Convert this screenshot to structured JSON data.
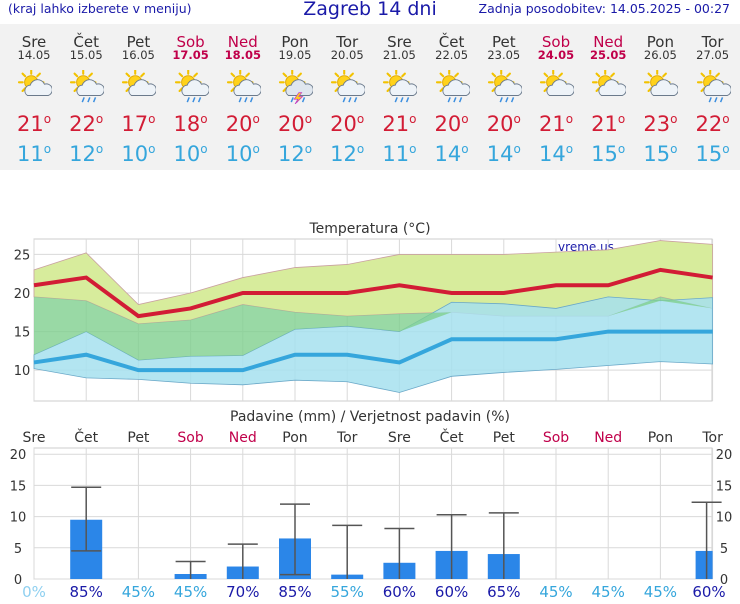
{
  "header": {
    "menu_hint": "(kraj lahko izberete v meniju)",
    "title": "Zagreb 14 dni",
    "updated": "Zadnja posodobitev: 14.05.2025 - 00:27"
  },
  "colors": {
    "accent": "#1a1aa8",
    "weekend": "#c0004a",
    "max_temp": "#d21c35",
    "min_temp": "#35a6dc",
    "precip_bar": "#2b86e8",
    "max_band": "#d7ec9c",
    "min_band": "#a6e0ef",
    "overlap": "#80d08e"
  },
  "days": [
    {
      "name": "Sre",
      "date": "14.05",
      "weekend": false,
      "icon": "sun-cloud-icon",
      "tmax": "21",
      "tmin": "11"
    },
    {
      "name": "Čet",
      "date": "15.05",
      "weekend": false,
      "icon": "sun-cloud-rain-icon",
      "tmax": "22",
      "tmin": "12"
    },
    {
      "name": "Pet",
      "date": "16.05",
      "weekend": false,
      "icon": "sun-cloud-icon",
      "tmax": "17",
      "tmin": "10"
    },
    {
      "name": "Sob",
      "date": "17.05",
      "weekend": true,
      "icon": "sun-cloud-rain-icon",
      "tmax": "18",
      "tmin": "10"
    },
    {
      "name": "Ned",
      "date": "18.05",
      "weekend": true,
      "icon": "sun-cloud-rain-icon",
      "tmax": "20",
      "tmin": "10"
    },
    {
      "name": "Pon",
      "date": "19.05",
      "weekend": false,
      "icon": "cloud-thunder-icon",
      "tmax": "20",
      "tmin": "12"
    },
    {
      "name": "Tor",
      "date": "20.05",
      "weekend": false,
      "icon": "sun-cloud-rain-icon",
      "tmax": "20",
      "tmin": "12"
    },
    {
      "name": "Sre",
      "date": "21.05",
      "weekend": false,
      "icon": "sun-cloud-rain-icon",
      "tmax": "21",
      "tmin": "11"
    },
    {
      "name": "Čet",
      "date": "22.05",
      "weekend": false,
      "icon": "sun-cloud-rain-icon",
      "tmax": "20",
      "tmin": "14"
    },
    {
      "name": "Pet",
      "date": "23.05",
      "weekend": false,
      "icon": "sun-cloud-rain-icon",
      "tmax": "20",
      "tmin": "14"
    },
    {
      "name": "Sob",
      "date": "24.05",
      "weekend": true,
      "icon": "sun-cloud-icon",
      "tmax": "21",
      "tmin": "14"
    },
    {
      "name": "Ned",
      "date": "25.05",
      "weekend": true,
      "icon": "sun-cloud-icon",
      "tmax": "21",
      "tmin": "15"
    },
    {
      "name": "Pon",
      "date": "26.05",
      "weekend": false,
      "icon": "sun-cloud-icon",
      "tmax": "23",
      "tmin": "15"
    },
    {
      "name": "Tor",
      "date": "27.05",
      "weekend": false,
      "icon": "sun-cloud-rain-icon",
      "tmax": "22",
      "tmin": "15"
    }
  ],
  "chart_data": [
    {
      "type": "line",
      "title": "Temperatura (°C)",
      "watermark": "vreme.us",
      "x": [
        "Sre",
        "Čet",
        "Pet",
        "Sob",
        "Ned",
        "Pon",
        "Tor",
        "Sre",
        "Čet",
        "Pet",
        "Sob",
        "Ned",
        "Pon",
        "Tor"
      ],
      "ylim": [
        6,
        27
      ],
      "yticks": [
        10,
        15,
        20,
        25
      ],
      "grid": true,
      "series": [
        {
          "values": [
            21,
            22,
            17,
            18,
            20,
            20,
            20,
            21,
            20,
            20,
            21,
            21,
            23,
            22
          ],
          "band_high": [
            23,
            25.2,
            18.5,
            20,
            22,
            23.3,
            23.7,
            25,
            25,
            25,
            25.3,
            25.6,
            26.8,
            26.3
          ],
          "band_low": [
            19.5,
            19,
            16,
            16.5,
            18.5,
            17.5,
            17,
            17.3,
            17.5,
            17,
            17,
            17,
            19.5,
            18
          ]
        },
        {
          "values": [
            11,
            12,
            10,
            10,
            10,
            12,
            12,
            11,
            14,
            14,
            14,
            15,
            15,
            15
          ],
          "band_high": [
            12,
            15,
            11.3,
            11.8,
            11.9,
            15.3,
            15.7,
            15,
            18.8,
            18.6,
            18,
            19.5,
            19,
            19.4
          ],
          "band_low": [
            10.2,
            9,
            8.8,
            8.3,
            8.1,
            8.7,
            8.5,
            7.1,
            9.2,
            9.7,
            10.1,
            10.6,
            11.1,
            10.8
          ]
        }
      ]
    },
    {
      "type": "bar",
      "title": "Padavine (mm) / Verjetnost padavin (%)",
      "categories": [
        "Sre",
        "Čet",
        "Pet",
        "Sob",
        "Ned",
        "Pon",
        "Tor",
        "Sre",
        "Čet",
        "Pet",
        "Sob",
        "Ned",
        "Pon",
        "Tor"
      ],
      "ylim": [
        0,
        21
      ],
      "yticks": [
        0,
        5,
        10,
        15,
        20
      ],
      "values": [
        0,
        9.5,
        0,
        0.8,
        2,
        6.5,
        0.7,
        2.6,
        4.5,
        4,
        0,
        0,
        0,
        4.5
      ],
      "error_low": [
        null,
        4.5,
        null,
        0,
        0,
        0.7,
        0,
        0,
        0,
        0,
        null,
        null,
        null,
        0
      ],
      "error_high": [
        null,
        14.7,
        null,
        2.8,
        5.6,
        12,
        8.6,
        8.1,
        10.3,
        10.6,
        null,
        null,
        null,
        12.3
      ],
      "probability": [
        "0%",
        "85%",
        "45%",
        "45%",
        "70%",
        "85%",
        "55%",
        "60%",
        "60%",
        "65%",
        "45%",
        "45%",
        "45%",
        "60%"
      ]
    }
  ]
}
